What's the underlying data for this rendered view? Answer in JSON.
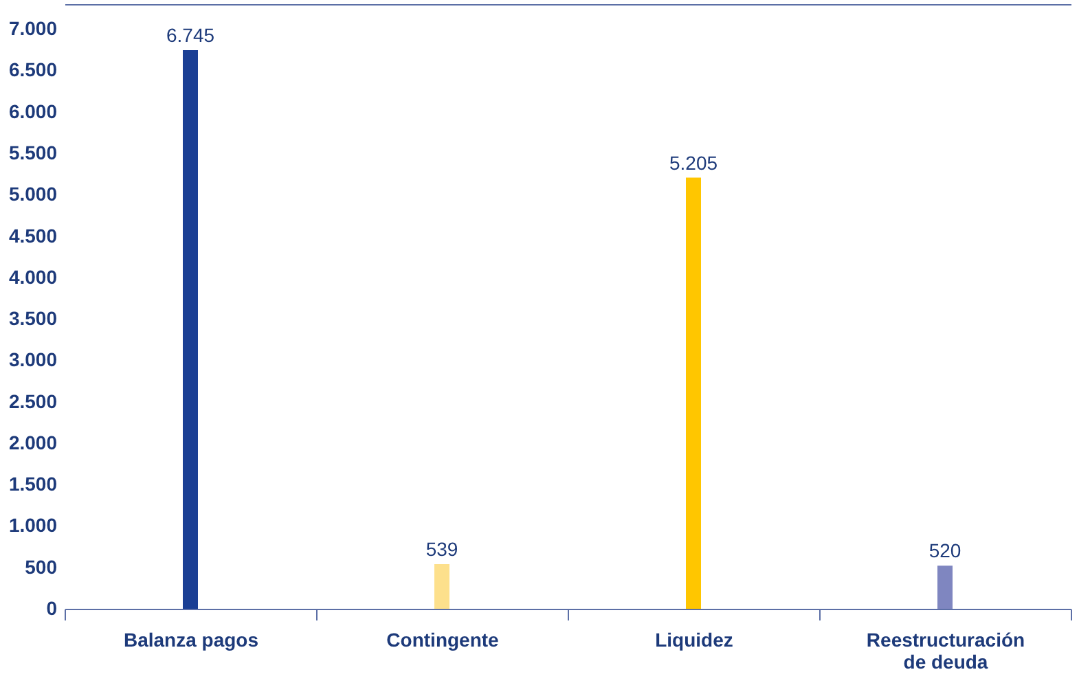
{
  "chart_data": {
    "type": "bar",
    "categories": [
      "Balanza pagos",
      "Contingente",
      "Liquidez",
      "Reestructuración de deuda"
    ],
    "values": [
      6745,
      539,
      5205,
      520
    ],
    "colors": [
      "#1b3f94",
      "#fde08c",
      "#ffc600",
      "#7f86c0"
    ],
    "value_labels": [
      "6.745",
      "539",
      "5.205",
      "520"
    ],
    "ylim": [
      0,
      7300
    ],
    "yticks": [
      0,
      500,
      {
        "value": 1000,
        "label": "1.000"
      },
      {
        "value": 1500,
        "label": "1.500"
      },
      {
        "value": 2000,
        "label": "2.000"
      },
      {
        "value": 2500,
        "label": "2.500"
      },
      {
        "value": 3000,
        "label": "3.000"
      },
      {
        "value": 3500,
        "label": "3.500"
      },
      {
        "value": 4000,
        "label": "4.000"
      },
      {
        "value": 4500,
        "label": "4.500"
      },
      {
        "value": 5000,
        "label": "5.000"
      },
      {
        "value": 5500,
        "label": "5.500"
      },
      {
        "value": 6000,
        "label": "6.000"
      },
      {
        "value": 6500,
        "label": "6.500"
      },
      {
        "value": 7000,
        "label": "7.000"
      }
    ],
    "grid": false,
    "legend": false
  }
}
